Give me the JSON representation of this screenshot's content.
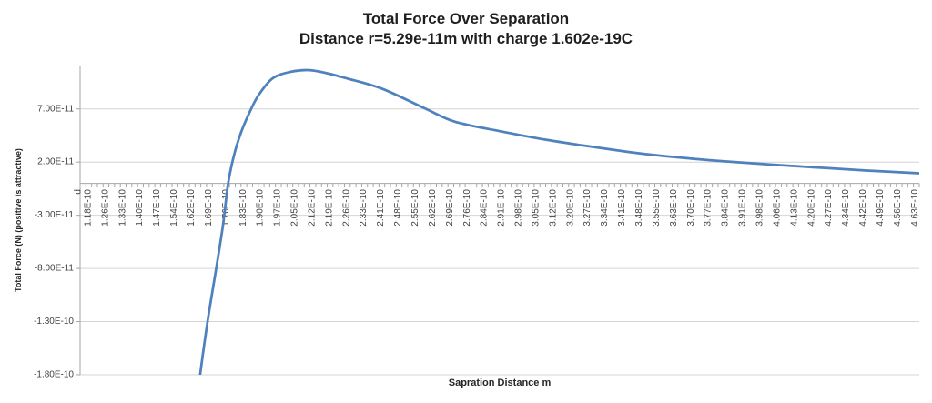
{
  "chart_data": {
    "type": "line",
    "title": "Total Force Over Separation Distance r=5.29e-11m with charge 1.602e-19C",
    "title_line1": "Total Force Over Separation",
    "title_line2": "Distance r=5.29e-11m with charge 1.602e-19C",
    "xlabel": "Sapration Distance m",
    "ylabel": "Total Force (N) (positive is attractive)",
    "grid": "horizontal-major",
    "legend_position": "none",
    "y_axis": {
      "min": -1.8e-10,
      "max": 1.1e-10,
      "major_unit": 5e-11,
      "tick_labels": [
        "7.00E-11",
        "2.00E-11",
        "-3.00E-11",
        "-8.00E-11",
        "-1.30E-10",
        "-1.80E-10"
      ],
      "tick_values": [
        7e-11,
        2e-11,
        -3e-11,
        -8e-11,
        -1.3e-10,
        -1.8e-10
      ]
    },
    "x_axis": {
      "kind": "category",
      "tick_labels": [
        "d",
        "1.18E-10",
        "1.26E-10",
        "1.33E-10",
        "1.40E-10",
        "1.47E-10",
        "1.54E-10",
        "1.62E-10",
        "1.69E-10",
        "1.76E-10",
        "1.83E-10",
        "1.90E-10",
        "1.97E-10",
        "2.05E-10",
        "2.12E-10",
        "2.19E-10",
        "2.26E-10",
        "2.33E-10",
        "2.41E-10",
        "2.48E-10",
        "2.55E-10",
        "2.62E-10",
        "2.69E-10",
        "2.76E-10",
        "2.84E-10",
        "2.91E-10",
        "2.98E-10",
        "3.05E-10",
        "3.12E-10",
        "3.20E-10",
        "3.27E-10",
        "3.34E-10",
        "3.41E-10",
        "3.48E-10",
        "3.55E-10",
        "3.63E-10",
        "3.70E-10",
        "3.77E-10",
        "3.84E-10",
        "3.91E-10",
        "3.98E-10",
        "4.06E-10",
        "4.13E-10",
        "4.20E-10",
        "4.27E-10",
        "4.34E-10",
        "4.42E-10",
        "4.49E-10",
        "4.56E-10",
        "4.63E-10"
      ],
      "label_interval": 3,
      "minor_tick_intervals": 146,
      "numeric_label_start": 1.18e-10,
      "numeric_label_step": 7.19e-12,
      "plot_edge_values": [
        1.146e-10,
        4.649e-10
      ]
    },
    "series": [
      {
        "name": "Total Force",
        "color": "#4F81BD",
        "stroke_width": 2.75,
        "points_units": {
          "x": "1e-10 m",
          "y": "1e-11 N"
        },
        "points": [
          [
            1.628,
            -21.5
          ],
          [
            1.647,
            -18.0
          ],
          [
            1.678,
            -13.0
          ],
          [
            1.712,
            -8.3
          ],
          [
            1.742,
            -4.0
          ],
          [
            1.764,
            0.0
          ],
          [
            1.788,
            2.6
          ],
          [
            1.818,
            4.8
          ],
          [
            1.86,
            7.0
          ],
          [
            1.894,
            8.4
          ],
          [
            1.951,
            9.9
          ],
          [
            2.027,
            10.5
          ],
          [
            2.103,
            10.65
          ],
          [
            2.179,
            10.35
          ],
          [
            2.255,
            9.9
          ],
          [
            2.407,
            8.9
          ],
          [
            2.59,
            7.0
          ],
          [
            2.711,
            5.8
          ],
          [
            2.901,
            4.9
          ],
          [
            3.091,
            4.1
          ],
          [
            3.281,
            3.45
          ],
          [
            3.471,
            2.85
          ],
          [
            3.661,
            2.4
          ],
          [
            3.851,
            2.05
          ],
          [
            4.041,
            1.75
          ],
          [
            4.231,
            1.48
          ],
          [
            4.421,
            1.22
          ],
          [
            4.649,
            0.95
          ]
        ]
      }
    ]
  },
  "colors": {
    "background": "#FFFFFF",
    "gridline": "#D4D4D4",
    "axis_line": "#A6A6A6",
    "tick_label": "#404040",
    "title_text": "#1F1F1F",
    "series_blue": "#4F81BD"
  }
}
